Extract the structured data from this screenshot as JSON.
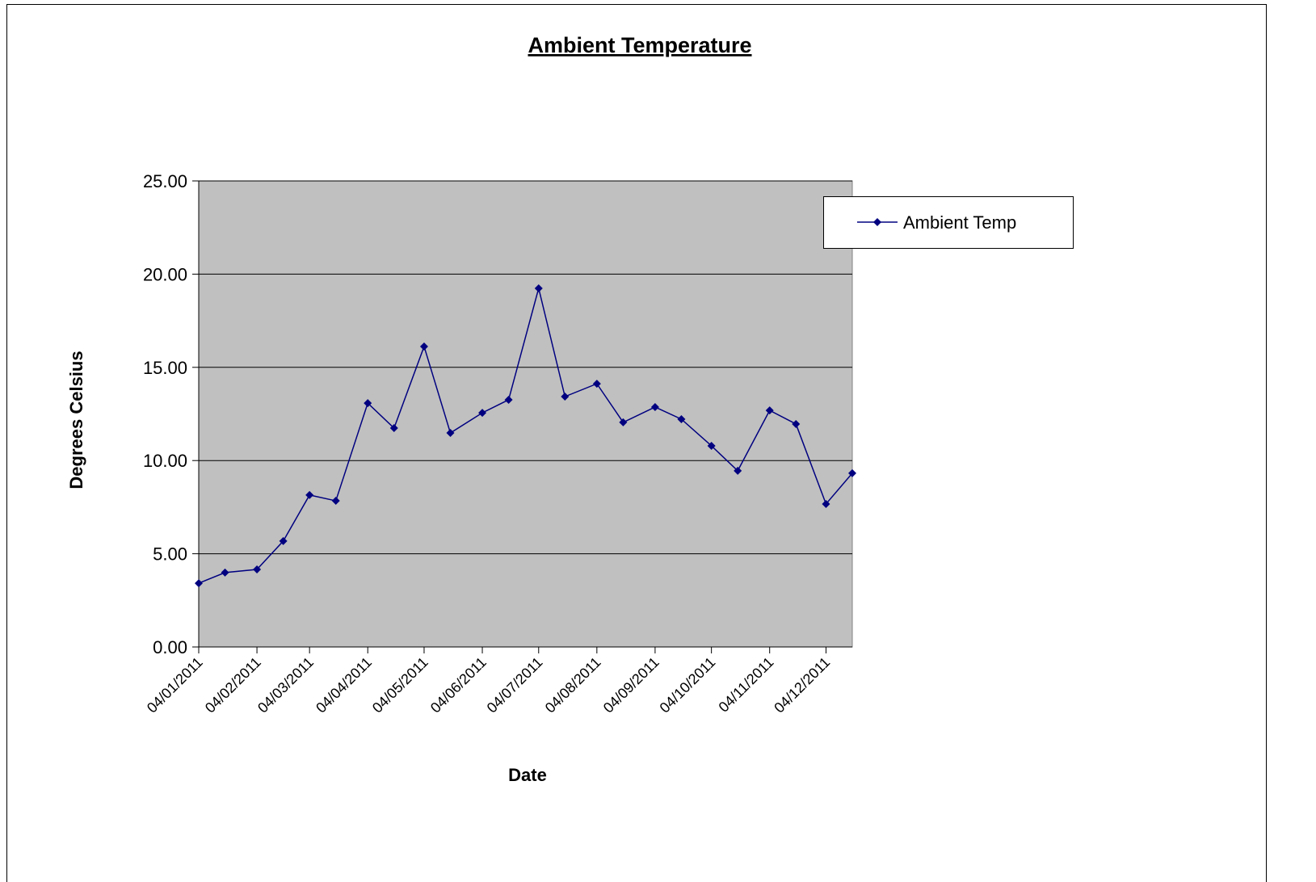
{
  "chart_data": {
    "type": "line",
    "title": "Ambient Temperature",
    "x_label": "Date",
    "y_label": "Degrees Celsius",
    "x": [
      "2011-01-04",
      "2011-01-18",
      "2011-02-04",
      "2011-02-18",
      "2011-03-04",
      "2011-03-18",
      "2011-04-04",
      "2011-04-18",
      "2011-05-04",
      "2011-05-18",
      "2011-06-04",
      "2011-06-18",
      "2011-07-04",
      "2011-07-18",
      "2011-08-04",
      "2011-08-18",
      "2011-09-04",
      "2011-09-18",
      "2011-10-04",
      "2011-10-18",
      "2011-11-04",
      "2011-11-18",
      "2011-12-04",
      "2011-12-18"
    ],
    "series": [
      {
        "name": "Ambient Temp",
        "color": "#000080",
        "values": [
          3.42,
          3.99,
          4.16,
          5.68,
          8.15,
          7.84,
          13.08,
          11.74,
          16.12,
          11.48,
          12.56,
          13.26,
          19.24,
          13.43,
          14.12,
          12.05,
          12.87,
          12.22,
          10.79,
          9.45,
          12.69,
          11.96,
          7.67,
          9.32
        ]
      }
    ],
    "xlim": [
      "2011-01-04",
      "2011-12-18"
    ],
    "xticks": [
      {
        "value": "2011-01-04",
        "label": "04/01/2011"
      },
      {
        "value": "2011-02-04",
        "label": "04/02/2011"
      },
      {
        "value": "2011-03-04",
        "label": "04/03/2011"
      },
      {
        "value": "2011-04-04",
        "label": "04/04/2011"
      },
      {
        "value": "2011-05-04",
        "label": "04/05/2011"
      },
      {
        "value": "2011-06-04",
        "label": "04/06/2011"
      },
      {
        "value": "2011-07-04",
        "label": "04/07/2011"
      },
      {
        "value": "2011-08-04",
        "label": "04/08/2011"
      },
      {
        "value": "2011-09-04",
        "label": "04/09/2011"
      },
      {
        "value": "2011-10-04",
        "label": "04/10/2011"
      },
      {
        "value": "2011-11-04",
        "label": "04/11/2011"
      },
      {
        "value": "2011-12-04",
        "label": "04/12/2011"
      }
    ],
    "ylim": [
      0,
      25
    ],
    "yticks": [
      {
        "value": 0,
        "label": "0.00"
      },
      {
        "value": 5,
        "label": "5.00"
      },
      {
        "value": 10,
        "label": "10.00"
      },
      {
        "value": 15,
        "label": "15.00"
      },
      {
        "value": 20,
        "label": "20.00"
      },
      {
        "value": 25,
        "label": "25.00"
      }
    ],
    "grid": true,
    "legend": "right"
  }
}
